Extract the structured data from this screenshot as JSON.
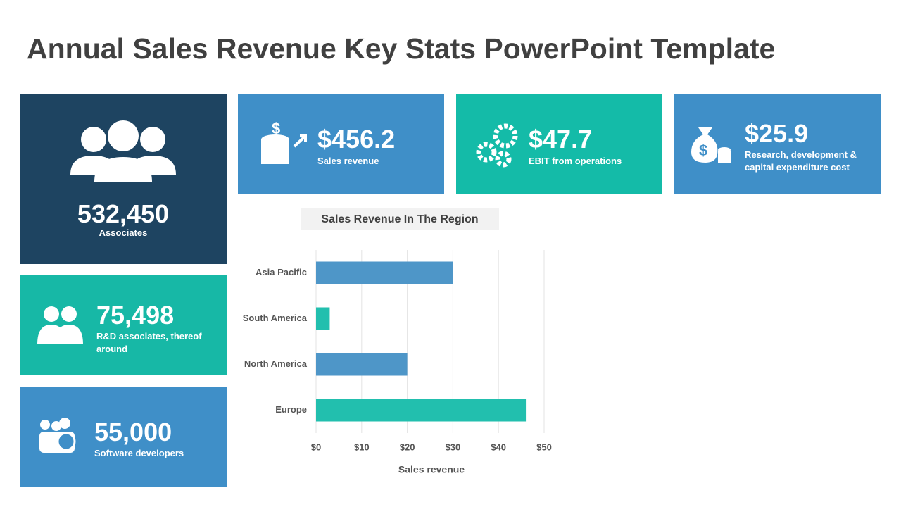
{
  "title": "Annual Sales Revenue Key Stats PowerPoint Template",
  "cards": [
    {
      "value": "532,450",
      "label": "Associates"
    },
    {
      "value": "75,498",
      "label": "R&D associates, thereof around"
    },
    {
      "value": "55,000",
      "label": "Software developers"
    },
    {
      "value": "$456.2",
      "label": "Sales revenue"
    },
    {
      "value": "$47.7",
      "label": "EBIT from operations"
    },
    {
      "value": "$25.9",
      "label": "Research, development & capital expenditure cost"
    }
  ],
  "chart_data": {
    "type": "bar",
    "title": "Sales Revenue In The Region",
    "categories": [
      "Asia Pacific",
      "South America",
      "North America",
      "Europe"
    ],
    "values": [
      30,
      3,
      20,
      46
    ],
    "colors": [
      "#4e96c8",
      "#22bfae",
      "#4e96c8",
      "#22bfae"
    ],
    "xlim": [
      0,
      50
    ],
    "xticks": [
      {
        "value": 0,
        "label": "$0"
      },
      {
        "value": 10,
        "label": "$10"
      },
      {
        "value": 20,
        "label": "$20"
      },
      {
        "value": 30,
        "label": "$30"
      },
      {
        "value": 40,
        "label": "$40"
      },
      {
        "value": 50,
        "label": "$50"
      }
    ],
    "xlabel": "Sales revenue",
    "grid": true
  }
}
